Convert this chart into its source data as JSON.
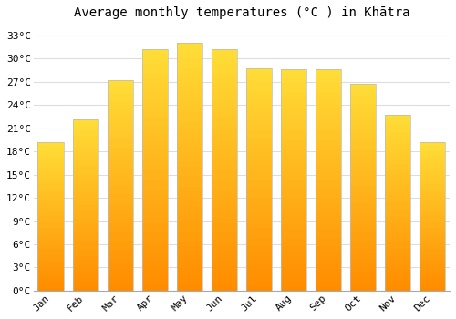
{
  "title": "Average monthly temperatures (°C ) in Khātra",
  "months": [
    "Jan",
    "Feb",
    "Mar",
    "Apr",
    "May",
    "Jun",
    "Jul",
    "Aug",
    "Sep",
    "Oct",
    "Nov",
    "Dec"
  ],
  "temperatures": [
    19.2,
    22.2,
    27.2,
    31.2,
    32.0,
    31.2,
    28.8,
    28.6,
    28.6,
    26.8,
    22.8,
    19.2
  ],
  "bar_color_top": "#FFB300",
  "bar_color_bottom": "#FFA000",
  "bar_edge_color": "#BBBBBB",
  "background_color": "#FFFFFF",
  "grid_color": "#DDDDDD",
  "yticks": [
    0,
    3,
    6,
    9,
    12,
    15,
    18,
    21,
    24,
    27,
    30,
    33
  ],
  "ylim": [
    0,
    34.5
  ],
  "title_fontsize": 10,
  "tick_fontsize": 8,
  "font_family": "monospace",
  "bar_width": 0.75
}
